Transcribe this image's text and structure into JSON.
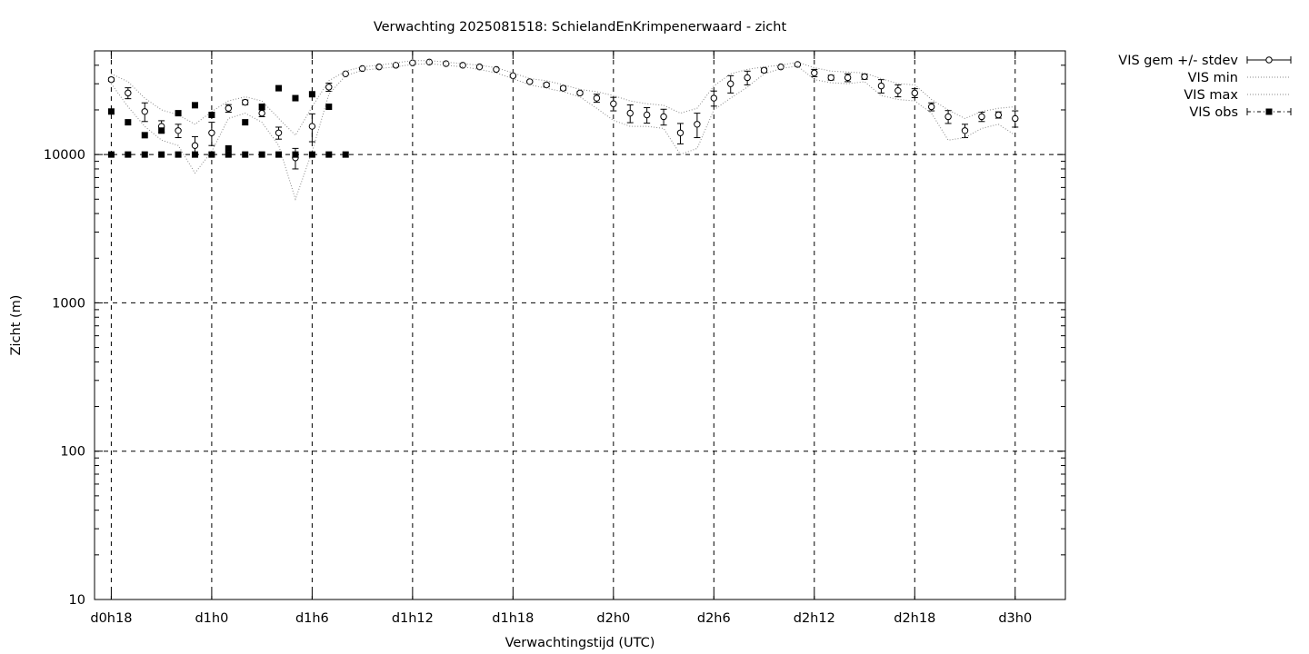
{
  "chart_data": {
    "type": "scatter",
    "title": "Verwachting 2025081518: SchielandEnKrimpenerwaard - zicht",
    "xlabel": "Verwachtingstijd (UTC)",
    "ylabel": "Zicht (m)",
    "yscale": "log",
    "ylim": [
      10,
      50000
    ],
    "xlim_hours": [
      17,
      75
    ],
    "grid": true,
    "legend_position": "outside-top-right",
    "x_ticks": [
      {
        "hour": 18,
        "label": "d0h18"
      },
      {
        "hour": 24,
        "label": "d1h0"
      },
      {
        "hour": 30,
        "label": "d1h6"
      },
      {
        "hour": 36,
        "label": "d1h12"
      },
      {
        "hour": 42,
        "label": "d1h18"
      },
      {
        "hour": 48,
        "label": "d2h0"
      },
      {
        "hour": 54,
        "label": "d2h6"
      },
      {
        "hour": 60,
        "label": "d2h12"
      },
      {
        "hour": 66,
        "label": "d2h18"
      },
      {
        "hour": 72,
        "label": "d3h0"
      }
    ],
    "y_ticks": [
      {
        "value": 10,
        "label": "10"
      },
      {
        "value": 100,
        "label": "100"
      },
      {
        "value": 1000,
        "label": "1000"
      },
      {
        "value": 10000,
        "label": "10000"
      }
    ],
    "series": [
      {
        "name": "VIS gem +/- stdev",
        "style": "errorbar",
        "x": [
          18,
          19,
          20,
          21,
          22,
          23,
          24,
          25,
          26,
          27,
          28,
          29,
          30,
          31,
          32,
          33,
          34,
          35,
          36,
          37,
          38,
          39,
          40,
          41,
          42,
          43,
          44,
          45,
          46,
          47,
          48,
          49,
          50,
          51,
          52,
          53,
          54,
          55,
          56,
          57,
          58,
          59,
          60,
          61,
          62,
          63,
          64,
          65,
          66,
          67,
          68,
          69,
          70,
          71,
          72
        ],
        "values": [
          32000,
          26000,
          19500,
          15500,
          14500,
          11500,
          14000,
          20500,
          22500,
          19000,
          14000,
          9500,
          15500,
          28500,
          35000,
          38000,
          39000,
          40000,
          41500,
          42000,
          41000,
          40000,
          39000,
          37500,
          34000,
          31000,
          29500,
          28000,
          26000,
          24000,
          22000,
          19000,
          18500,
          18000,
          14000,
          16000,
          24000,
          30000,
          33000,
          37000,
          39000,
          40500,
          35500,
          33000,
          33000,
          33500,
          29000,
          27000,
          26000,
          21000,
          18000,
          14500,
          18000,
          18500,
          17500
        ],
        "stdev": [
          800,
          2200,
          2800,
          1400,
          1500,
          1700,
          2500,
          1200,
          800,
          1000,
          1300,
          1500,
          3300,
          1800,
          500,
          400,
          400,
          600,
          400,
          400,
          400,
          300,
          400,
          400,
          600,
          400,
          800,
          800,
          600,
          1500,
          2300,
          2600,
          2200,
          2200,
          2200,
          3000,
          2800,
          4000,
          3500,
          1200,
          500,
          500,
          2000,
          1200,
          2000,
          1300,
          3000,
          2500,
          1800,
          1300,
          1800,
          1500,
          1300,
          900,
          2200
        ]
      },
      {
        "name": "VIS min",
        "style": "dotted",
        "x": [
          18,
          19,
          20,
          21,
          22,
          23,
          24,
          25,
          26,
          27,
          28,
          29,
          30,
          31,
          32,
          33,
          34,
          35,
          36,
          37,
          38,
          39,
          40,
          41,
          42,
          43,
          44,
          45,
          46,
          47,
          48,
          49,
          50,
          51,
          52,
          53,
          54,
          55,
          56,
          57,
          58,
          59,
          60,
          61,
          62,
          63,
          64,
          65,
          66,
          67,
          68,
          69,
          70,
          71,
          72
        ],
        "values": [
          30000,
          21000,
          15500,
          12500,
          11500,
          7500,
          10500,
          17500,
          19000,
          16500,
          11500,
          5000,
          10500,
          25500,
          34000,
          37000,
          38000,
          39000,
          40500,
          41000,
          40000,
          39000,
          37500,
          35500,
          32500,
          29500,
          28000,
          26500,
          24500,
          20500,
          17000,
          15500,
          15500,
          15000,
          10000,
          11000,
          20000,
          24000,
          28500,
          35000,
          38000,
          39500,
          32000,
          30500,
          30000,
          31000,
          25000,
          23500,
          23000,
          19000,
          12500,
          13000,
          15000,
          16000,
          13500
        ]
      },
      {
        "name": "VIS max",
        "style": "dotted",
        "x": [
          18,
          19,
          20,
          21,
          22,
          23,
          24,
          25,
          26,
          27,
          28,
          29,
          30,
          31,
          32,
          33,
          34,
          35,
          36,
          37,
          38,
          39,
          40,
          41,
          42,
          43,
          44,
          45,
          46,
          47,
          48,
          49,
          50,
          51,
          52,
          53,
          54,
          55,
          56,
          57,
          58,
          59,
          60,
          61,
          62,
          63,
          64,
          65,
          66,
          67,
          68,
          69,
          70,
          71,
          72
        ],
        "values": [
          35000,
          31000,
          24000,
          20000,
          18500,
          16000,
          19500,
          23000,
          24500,
          23000,
          17500,
          13500,
          21000,
          31500,
          36500,
          39000,
          40000,
          41500,
          43000,
          43000,
          42000,
          41000,
          40000,
          38500,
          35500,
          32500,
          31500,
          29500,
          27500,
          26500,
          25000,
          23000,
          22000,
          21500,
          19000,
          20500,
          29000,
          35000,
          37500,
          39000,
          40000,
          42000,
          38500,
          36500,
          36000,
          35500,
          32500,
          30000,
          29500,
          23500,
          20000,
          17500,
          19500,
          20500,
          21000
        ]
      },
      {
        "name": "VIS obs",
        "style": "markers",
        "x": [
          18,
          18,
          19,
          19,
          20,
          20,
          21,
          21,
          22,
          22,
          23,
          23,
          24,
          24,
          25,
          25,
          26,
          26,
          27,
          27,
          28,
          28,
          29,
          29,
          30,
          30,
          31,
          31,
          32
        ],
        "values": [
          19500,
          10000,
          16500,
          10000,
          13500,
          10000,
          14500,
          10000,
          19000,
          10000,
          21500,
          10000,
          18500,
          10000,
          11000,
          10000,
          16500,
          10000,
          21000,
          10000,
          28000,
          10000,
          24000,
          10000,
          25500,
          10000,
          21000,
          10000,
          10000
        ]
      }
    ]
  }
}
